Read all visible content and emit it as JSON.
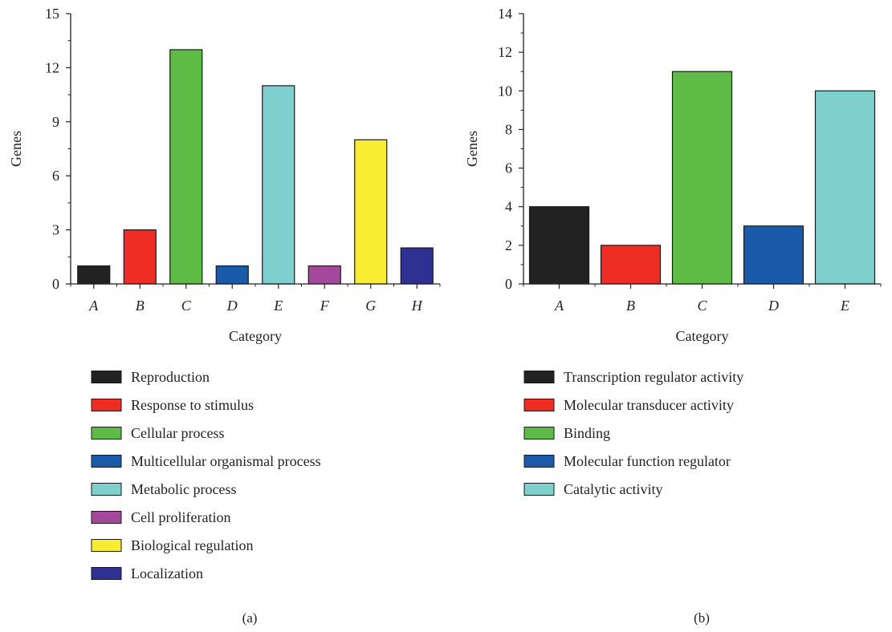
{
  "chart_data": [
    {
      "type": "bar",
      "panel_label": "(a)",
      "xlabel": "Category",
      "ylabel": "Genes",
      "ylim": [
        0,
        15
      ],
      "yticks": [
        0,
        3,
        6,
        9,
        12,
        15
      ],
      "minor_ticks": true,
      "categories": [
        "A",
        "B",
        "C",
        "D",
        "E",
        "F",
        "G",
        "H"
      ],
      "values": [
        1,
        3,
        13,
        1,
        11,
        1,
        8,
        2
      ],
      "colors": [
        "#222222",
        "#ee2d24",
        "#5dbb46",
        "#1a5aa8",
        "#7fcfcf",
        "#a4489c",
        "#f9ed32",
        "#2e3192"
      ],
      "legend": [
        "Reproduction",
        "Response to stimulus",
        "Cellular process",
        "Multicellular organismal process",
        "Metabolic process",
        "Cell proliferation",
        "Biological regulation",
        "Localization"
      ]
    },
    {
      "type": "bar",
      "panel_label": "(b)",
      "xlabel": "Category",
      "ylabel": "Genes",
      "ylim": [
        0,
        14
      ],
      "yticks": [
        0,
        2,
        4,
        6,
        8,
        10,
        12,
        14
      ],
      "minor_ticks": true,
      "categories": [
        "A",
        "B",
        "C",
        "D",
        "E"
      ],
      "values": [
        4,
        2,
        11,
        3,
        10
      ],
      "colors": [
        "#222222",
        "#ee2d24",
        "#5dbb46",
        "#1a5aa8",
        "#7fcfcf"
      ],
      "legend": [
        "Transcription regulator activity",
        "Molecular transducer activity",
        "Binding",
        "Molecular function regulator",
        "Catalytic activity"
      ]
    }
  ]
}
